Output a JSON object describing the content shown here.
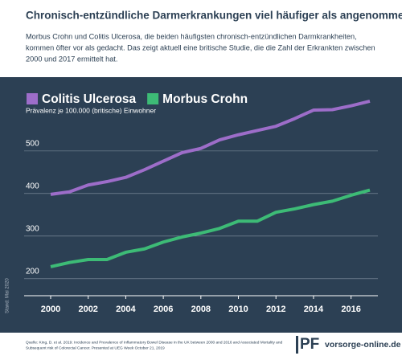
{
  "chart_data": {
    "type": "line",
    "title": "Chronisch-entzündliche Darmerkrankungen viel häufiger als angenommen",
    "subtitle": [
      "Morbus Crohn und Colitis Ulcerosa, die beiden häufigsten chronisch-entzündlichen Darmkrankheiten,",
      "kommen öfter vor als gedacht. Das zeigt aktuell eine britische Studie, die die Zahl der Erkrankten zwischen",
      "2000 und 2017 ermittelt hat."
    ],
    "y_label": "Prävalenz je 100.000 (britische) Einwohner",
    "x": [
      2000,
      2001,
      2002,
      2003,
      2004,
      2005,
      2006,
      2007,
      2008,
      2009,
      2010,
      2011,
      2012,
      2013,
      2014,
      2015,
      2016,
      2017
    ],
    "series": [
      {
        "name": "Colitis Ulcerosa",
        "color": "#9d6dc9",
        "values": [
          398,
          404,
          420,
          428,
          438,
          456,
          476,
          496,
          506,
          526,
          538,
          548,
          558,
          576,
          596,
          597,
          606,
          617
        ]
      },
      {
        "name": "Morbus Crohn",
        "color": "#3dbb76",
        "values": [
          228,
          238,
          245,
          245,
          262,
          270,
          286,
          298,
          307,
          318,
          335,
          335,
          356,
          364,
          374,
          382,
          396,
          408
        ]
      }
    ],
    "xlim": [
      2000,
      2017
    ],
    "xticks": [
      2000,
      2002,
      2004,
      2006,
      2008,
      2010,
      2012,
      2014,
      2016
    ],
    "ylim": [
      160,
      630
    ],
    "yticks": [
      200,
      300,
      400,
      500
    ],
    "grid": true,
    "side_note": "Stand: Mai 2020",
    "source": [
      "Quelle: King, D. et al. 2019: Incidence and Prevalence of Inflammatory Bowel Disease in the UK between 2000 and 2016 and Associated Mortality and",
      "Subsequent risk of Colorectal Cancer. Presented at UEG Week October 21, 2019"
    ],
    "logo": "PF",
    "website": "vorsorge-online.de"
  }
}
